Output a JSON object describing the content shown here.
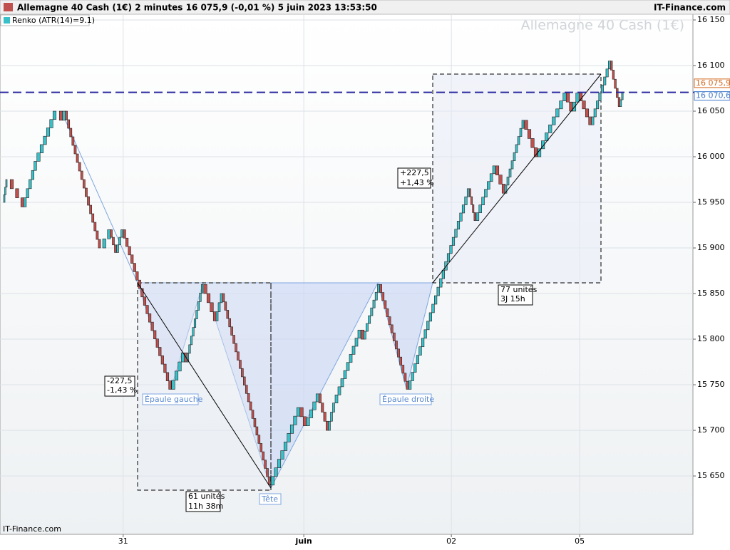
{
  "header": {
    "title": "Allemagne 40 Cash (1€) 2 minutes 16 075,9 (-0,01 %) 5 juin 2023 13:53:50",
    "brand": "IT-Finance.com",
    "indicator": "Renko (ATR(14)=9.1)"
  },
  "chart_data": {
    "type": "renko",
    "watermark": "Allemagne 40 Cash (1€)",
    "footer": "IT-Finance.com",
    "up_color": "#39c0c8",
    "down_color": "#c0504d",
    "x": [
      1,
      2,
      7,
      11,
      17,
      19,
      20,
      31,
      34,
      36,
      38,
      53,
      57,
      58,
      63,
      67,
      69,
      84,
      93,
      95,
      99,
      102,
      104,
      112,
      113,
      118,
      127,
      139,
      146,
      148,
      154,
      157,
      163,
      167,
      176,
      178,
      180,
      184,
      190,
      193,
      194
    ],
    "values": [
      15950,
      15975,
      15945,
      15995,
      16050,
      16040,
      16050,
      15900,
      15920,
      15895,
      15920,
      15745,
      15785,
      15775,
      15860,
      15820,
      15850,
      15640,
      15725,
      15705,
      15740,
      15700,
      15730,
      15810,
      15800,
      15860,
      15745,
      15885,
      15965,
      15930,
      15990,
      15960,
      16040,
      16000,
      16070,
      16050,
      16070,
      16035,
      16105,
      16055,
      16070
    ],
    "xlim": [
      0,
      216
    ],
    "ylim": [
      15586,
      16156.25
    ],
    "xticks": [
      {
        "value": 38.4,
        "label": "31"
      },
      {
        "value": 94.7,
        "label": "juin"
      },
      {
        "value": 140.7,
        "label": "02"
      },
      {
        "value": 180.7,
        "label": "05"
      }
    ],
    "yticks": [
      {
        "value": 15650,
        "label": "15 650"
      },
      {
        "value": 15700,
        "label": "15 700"
      },
      {
        "value": 15750,
        "label": "15 750"
      },
      {
        "value": 15800,
        "label": "15 800"
      },
      {
        "value": 15850,
        "label": "15 850"
      },
      {
        "value": 15900,
        "label": "15 900"
      },
      {
        "value": 15950,
        "label": "15 950"
      },
      {
        "value": 16000,
        "label": "16 000"
      },
      {
        "value": 16050,
        "label": "16 050"
      },
      {
        "value": 16100,
        "label": "16 100"
      },
      {
        "value": 16150,
        "label": "16 150"
      }
    ],
    "grid": true,
    "price_markers": [
      {
        "value": 16075.9,
        "label": "16 075,9",
        "color": "#d2691e"
      },
      {
        "value": 16070.6,
        "label": "16 070,6",
        "color": "#3c78c8"
      }
    ],
    "annotations": {
      "drop": [
        "-227,5",
        "-1,43 %"
      ],
      "drop_span": [
        "61 unités",
        "11h 38m"
      ],
      "rise": [
        "+227,5",
        "+1,43 %"
      ],
      "rise_span": [
        "77 unités",
        "3J 15h"
      ],
      "left_shoulder": "Épaule gauche",
      "head": "Tête",
      "right_shoulder": "Épaule droite"
    }
  }
}
